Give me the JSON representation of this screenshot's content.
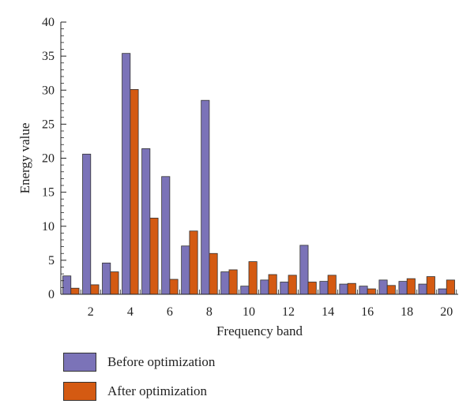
{
  "chart_data": {
    "type": "bar",
    "title": "",
    "xlabel": "Frequency band",
    "ylabel": "Energy value",
    "ylim": [
      0,
      40
    ],
    "yticks": [
      0,
      5,
      10,
      15,
      20,
      25,
      30,
      35,
      40
    ],
    "categories": [
      1,
      2,
      3,
      4,
      5,
      6,
      7,
      8,
      9,
      10,
      11,
      12,
      13,
      14,
      15,
      16,
      17,
      18,
      19,
      20
    ],
    "xticks": [
      "2",
      "4",
      "6",
      "8",
      "10",
      "12",
      "14",
      "16",
      "18",
      "20"
    ],
    "grid": false,
    "legend_position": "bottom-left",
    "series": [
      {
        "name": "Before optimization",
        "color": "#7b73b8",
        "values": [
          2.7,
          20.6,
          4.6,
          35.4,
          21.4,
          17.3,
          7.1,
          28.5,
          3.3,
          1.2,
          2.1,
          1.8,
          7.2,
          1.9,
          1.5,
          1.2,
          2.1,
          1.9,
          1.5,
          0.8
        ]
      },
      {
        "name": "After optimization",
        "color": "#d45a12",
        "values": [
          0.9,
          1.4,
          3.3,
          30.1,
          11.2,
          2.2,
          9.3,
          6.0,
          3.6,
          4.8,
          2.9,
          2.8,
          1.8,
          2.8,
          1.6,
          0.8,
          1.3,
          2.3,
          2.6,
          2.1
        ]
      }
    ]
  }
}
